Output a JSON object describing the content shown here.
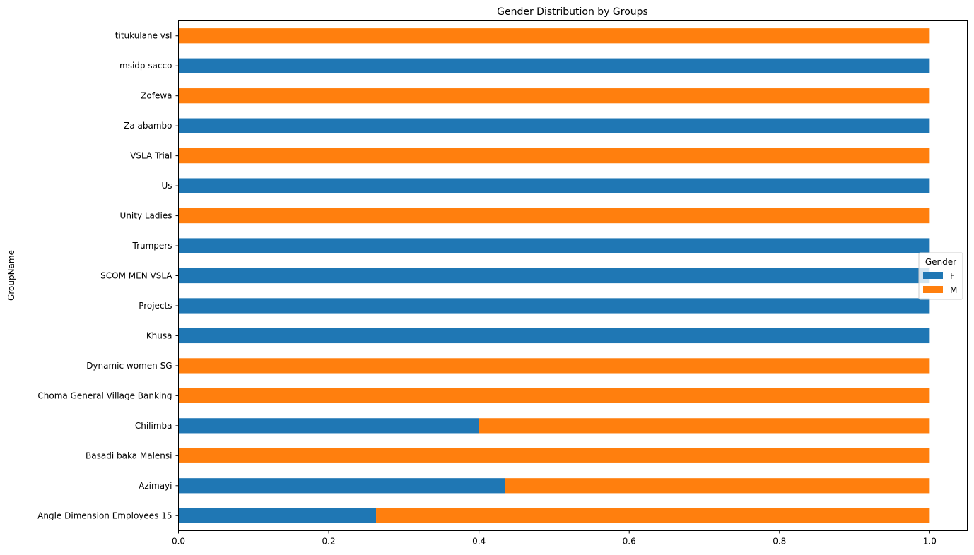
{
  "chart_data": {
    "type": "bar",
    "orientation": "horizontal",
    "stacked": true,
    "title": "Gender Distribution by Groups",
    "xlabel": "",
    "ylabel": "GroupName",
    "xlim": [
      0,
      1.05
    ],
    "xticks": [
      0.0,
      0.2,
      0.4,
      0.6,
      0.8,
      1.0
    ],
    "xtick_labels": [
      "0.0",
      "0.2",
      "0.4",
      "0.6",
      "0.8",
      "1.0"
    ],
    "grid": false,
    "legend": {
      "title": "Gender",
      "placement": "center-right"
    },
    "categories": [
      "Angle Dimension Employees 15",
      "Azimayi",
      "Basadi baka Malensi",
      "Chilimba",
      "Choma General Village Banking",
      "Dynamic women SG",
      "Khusa",
      "Projects",
      "SCOM MEN VSLA",
      "Trumpers",
      "Unity Ladies",
      "Us",
      "VSLA Trial",
      "Za abambo",
      "Zofewa",
      "msidp sacco",
      "titukulane vsl"
    ],
    "series": [
      {
        "name": "F",
        "color": "#1f77b4",
        "values": [
          0.263,
          0.435,
          0,
          0.4,
          0,
          0,
          1,
          1,
          1,
          1,
          0,
          1,
          0,
          1,
          0,
          1,
          0
        ]
      },
      {
        "name": "M",
        "color": "#ff7f0e",
        "values": [
          0.737,
          0.565,
          1,
          0.6,
          1,
          1,
          0,
          0,
          0,
          0,
          1,
          0,
          1,
          0,
          1,
          0,
          1
        ]
      }
    ]
  }
}
